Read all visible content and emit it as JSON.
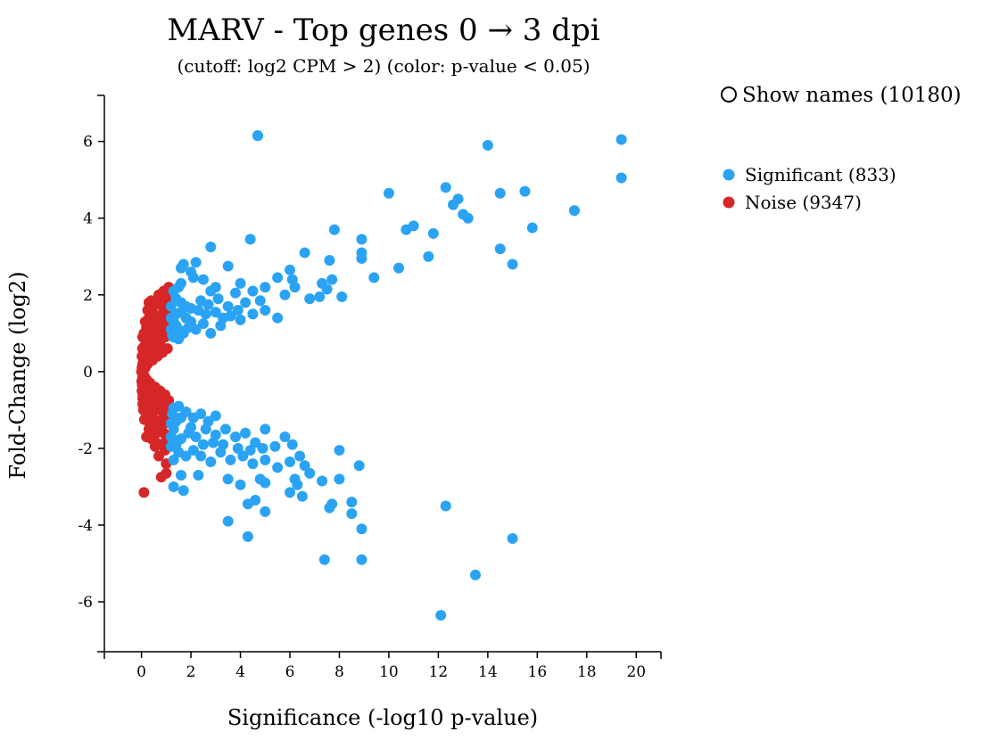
{
  "colors": {
    "significant": "#2aa3f4",
    "noise": "#d62728",
    "axis": "#000000"
  },
  "toggle": {
    "label": "Show names (10180)",
    "checked": false
  },
  "legend": [
    {
      "label": "Significant (833)",
      "color": "#2aa3f4"
    },
    {
      "label": "Noise (9347)",
      "color": "#d62728"
    }
  ],
  "chart_data": {
    "type": "scatter",
    "title": "MARV - Top genes 0 → 3 dpi",
    "subtitle": "(cutoff: log2 CPM > 2) (color: p-value < 0.05)",
    "xlabel": "Significance (-log10 p-value)",
    "ylabel": "Fold-Change (log2)",
    "xlim": [
      -1.5,
      21
    ],
    "ylim": [
      -7.3,
      7.2
    ],
    "xticks": [
      0,
      2,
      4,
      6,
      8,
      10,
      12,
      14,
      16,
      18,
      20
    ],
    "yticks": [
      -6,
      -4,
      -2,
      0,
      2,
      4,
      6
    ],
    "legend_position": "top-right",
    "grid": false,
    "series": [
      {
        "name": "Significant (833)",
        "points": [
          [
            4.7,
            6.15
          ],
          [
            14.0,
            5.9
          ],
          [
            19.4,
            6.05
          ],
          [
            19.4,
            5.05
          ],
          [
            10.0,
            4.65
          ],
          [
            12.3,
            4.8
          ],
          [
            14.5,
            4.65
          ],
          [
            15.5,
            4.7
          ],
          [
            12.6,
            4.35
          ],
          [
            12.8,
            4.5
          ],
          [
            13.0,
            4.1
          ],
          [
            13.2,
            4.0
          ],
          [
            17.5,
            4.2
          ],
          [
            15.8,
            3.75
          ],
          [
            10.7,
            3.7
          ],
          [
            11.0,
            3.8
          ],
          [
            11.8,
            3.6
          ],
          [
            14.5,
            3.2
          ],
          [
            15.0,
            2.8
          ],
          [
            11.6,
            3.0
          ],
          [
            4.4,
            3.45
          ],
          [
            2.8,
            3.25
          ],
          [
            7.8,
            3.7
          ],
          [
            8.9,
            3.45
          ],
          [
            6.6,
            3.1
          ],
          [
            8.9,
            3.1
          ],
          [
            8.9,
            2.95
          ],
          [
            10.4,
            2.7
          ],
          [
            9.4,
            2.45
          ],
          [
            7.6,
            2.9
          ],
          [
            3.5,
            2.75
          ],
          [
            2.2,
            2.85
          ],
          [
            1.7,
            2.8
          ],
          [
            1.6,
            2.7
          ],
          [
            2.0,
            2.6
          ],
          [
            2.5,
            2.4
          ],
          [
            6.0,
            2.65
          ],
          [
            5.5,
            2.45
          ],
          [
            6.2,
            2.2
          ],
          [
            7.7,
            2.4
          ],
          [
            7.3,
            2.3
          ],
          [
            7.5,
            2.15
          ],
          [
            8.1,
            1.95
          ],
          [
            6.8,
            1.9
          ],
          [
            7.2,
            1.95
          ],
          [
            3.0,
            2.2
          ],
          [
            4.0,
            2.3
          ],
          [
            4.5,
            2.1
          ],
          [
            5.0,
            2.2
          ],
          [
            3.8,
            2.05
          ],
          [
            2.8,
            2.1
          ],
          [
            5.8,
            2.0
          ],
          [
            1.6,
            2.3
          ],
          [
            1.5,
            2.2
          ],
          [
            6.1,
            2.4
          ],
          [
            2.1,
            2.45
          ],
          [
            1.3,
            2.1
          ],
          [
            1.4,
            1.9
          ],
          [
            1.6,
            1.8
          ],
          [
            1.8,
            1.7
          ],
          [
            2.0,
            1.65
          ],
          [
            2.3,
            1.6
          ],
          [
            2.6,
            1.5
          ],
          [
            3.0,
            1.55
          ],
          [
            3.3,
            1.4
          ],
          [
            3.6,
            1.45
          ],
          [
            4.0,
            1.35
          ],
          [
            4.5,
            1.5
          ],
          [
            5.0,
            1.6
          ],
          [
            5.5,
            1.4
          ],
          [
            1.3,
            1.3
          ],
          [
            1.4,
            1.2
          ],
          [
            1.5,
            1.1
          ],
          [
            1.7,
            1.0
          ],
          [
            1.9,
            1.15
          ],
          [
            2.2,
            1.1
          ],
          [
            2.5,
            1.25
          ],
          [
            2.8,
            1.0
          ],
          [
            3.2,
            1.2
          ],
          [
            1.3,
            0.9
          ],
          [
            1.5,
            0.85
          ],
          [
            1.4,
            1.5
          ],
          [
            1.8,
            1.4
          ],
          [
            2.4,
            1.85
          ],
          [
            2.7,
            1.75
          ],
          [
            3.1,
            1.9
          ],
          [
            3.5,
            1.7
          ],
          [
            3.9,
            1.6
          ],
          [
            4.2,
            1.8
          ],
          [
            4.8,
            1.85
          ],
          [
            1.2,
            1.7
          ],
          [
            1.2,
            1.4
          ],
          [
            1.2,
            1.1
          ],
          [
            1.25,
            0.95
          ],
          [
            1.6,
            1.55
          ],
          [
            2.0,
            1.3
          ],
          [
            4.7,
            6.15
          ],
          [
            4.3,
            -4.3
          ],
          [
            3.5,
            -3.9
          ],
          [
            4.3,
            -3.45
          ],
          [
            4.6,
            -3.35
          ],
          [
            5.0,
            -3.65
          ],
          [
            1.3,
            -3.0
          ],
          [
            1.7,
            -3.1
          ],
          [
            1.6,
            -2.7
          ],
          [
            2.3,
            -2.7
          ],
          [
            3.5,
            -2.8
          ],
          [
            4.0,
            -2.95
          ],
          [
            4.8,
            -2.8
          ],
          [
            5.0,
            -2.9
          ],
          [
            6.0,
            -3.15
          ],
          [
            6.3,
            -2.95
          ],
          [
            6.5,
            -3.25
          ],
          [
            6.2,
            -2.8
          ],
          [
            7.3,
            -2.85
          ],
          [
            7.7,
            -3.45
          ],
          [
            7.6,
            -3.55
          ],
          [
            8.0,
            -2.8
          ],
          [
            8.5,
            -3.4
          ],
          [
            8.5,
            -3.7
          ],
          [
            8.9,
            -4.1
          ],
          [
            8.8,
            -2.45
          ],
          [
            8.0,
            -2.05
          ],
          [
            7.4,
            -4.9
          ],
          [
            8.9,
            -4.9
          ],
          [
            12.1,
            -6.35
          ],
          [
            12.3,
            -3.5
          ],
          [
            13.5,
            -5.3
          ],
          [
            15.0,
            -4.35
          ],
          [
            5.0,
            -1.5
          ],
          [
            5.8,
            -1.7
          ],
          [
            6.1,
            -1.9
          ],
          [
            6.4,
            -2.2
          ],
          [
            6.6,
            -2.45
          ],
          [
            6.8,
            -2.65
          ],
          [
            6.0,
            -2.35
          ],
          [
            5.5,
            -2.5
          ],
          [
            5.0,
            -2.3
          ],
          [
            4.5,
            -2.4
          ],
          [
            4.1,
            -2.2
          ],
          [
            3.6,
            -2.3
          ],
          [
            3.2,
            -2.1
          ],
          [
            2.8,
            -2.35
          ],
          [
            2.4,
            -2.2
          ],
          [
            2.1,
            -2.05
          ],
          [
            1.8,
            -2.2
          ],
          [
            1.5,
            -2.1
          ],
          [
            1.3,
            -2.3
          ],
          [
            1.4,
            -1.9
          ],
          [
            1.6,
            -1.75
          ],
          [
            1.9,
            -1.6
          ],
          [
            2.2,
            -1.7
          ],
          [
            2.6,
            -1.5
          ],
          [
            3.0,
            -1.65
          ],
          [
            3.4,
            -1.5
          ],
          [
            3.8,
            -1.7
          ],
          [
            4.2,
            -1.6
          ],
          [
            4.6,
            -1.85
          ],
          [
            1.3,
            -1.5
          ],
          [
            1.4,
            -1.3
          ],
          [
            1.6,
            -1.2
          ],
          [
            1.8,
            -1.05
          ],
          [
            2.1,
            -1.2
          ],
          [
            2.4,
            -1.1
          ],
          [
            2.7,
            -1.3
          ],
          [
            3.0,
            -1.15
          ],
          [
            1.3,
            -0.95
          ],
          [
            1.5,
            -0.9
          ],
          [
            1.25,
            -1.1
          ],
          [
            2.0,
            -1.45
          ],
          [
            2.5,
            -1.9
          ],
          [
            3.3,
            -1.9
          ],
          [
            3.9,
            -2.0
          ],
          [
            4.4,
            -2.05
          ],
          [
            4.9,
            -2.0
          ],
          [
            5.4,
            -1.95
          ],
          [
            2.9,
            -1.85
          ],
          [
            1.2,
            -1.7
          ],
          [
            1.2,
            -1.95
          ],
          [
            1.2,
            -1.35
          ]
        ]
      },
      {
        "name": "Noise (9347)",
        "points": [
          [
            0.1,
            -3.15
          ],
          [
            0.8,
            -2.75
          ],
          [
            1.0,
            -2.65
          ],
          [
            1.0,
            -2.4
          ],
          [
            0.7,
            -2.2
          ],
          [
            0.8,
            -1.9
          ],
          [
            0.6,
            -1.85
          ],
          [
            0.4,
            -1.75
          ],
          [
            0.9,
            -1.6
          ],
          [
            0.5,
            -1.5
          ],
          [
            0.3,
            -1.3
          ],
          [
            0.7,
            -1.3
          ],
          [
            0.2,
            -1.1
          ],
          [
            0.5,
            -1.05
          ],
          [
            0.9,
            -1.15
          ],
          [
            0.15,
            -0.9
          ],
          [
            0.4,
            -0.8
          ],
          [
            0.7,
            -0.95
          ],
          [
            0.05,
            -0.7
          ],
          [
            0.25,
            -0.6
          ],
          [
            0.5,
            -0.65
          ],
          [
            0.02,
            -0.5
          ],
          [
            0.1,
            -0.4
          ],
          [
            0.2,
            -0.35
          ],
          [
            0.01,
            -0.25
          ],
          [
            0.05,
            -0.15
          ],
          [
            0.0,
            0.0
          ],
          [
            0.02,
            0.1
          ],
          [
            0.05,
            0.2
          ],
          [
            0.08,
            0.3
          ],
          [
            0.12,
            0.4
          ],
          [
            0.2,
            0.5
          ],
          [
            0.3,
            0.6
          ],
          [
            0.4,
            0.7
          ],
          [
            0.5,
            0.8
          ],
          [
            0.6,
            0.9
          ],
          [
            0.1,
            0.65
          ],
          [
            0.2,
            0.8
          ],
          [
            0.3,
            0.95
          ],
          [
            0.1,
            1.0
          ],
          [
            0.2,
            1.15
          ],
          [
            0.4,
            1.2
          ],
          [
            0.6,
            1.15
          ],
          [
            0.8,
            1.1
          ],
          [
            1.0,
            1.2
          ],
          [
            0.3,
            1.4
          ],
          [
            0.5,
            1.5
          ],
          [
            0.7,
            1.45
          ],
          [
            0.9,
            1.6
          ],
          [
            0.4,
            1.65
          ],
          [
            0.6,
            1.75
          ],
          [
            0.8,
            1.85
          ],
          [
            1.0,
            1.9
          ],
          [
            0.4,
            1.85
          ],
          [
            0.7,
            2.0
          ],
          [
            1.0,
            2.05
          ],
          [
            1.1,
            2.2
          ],
          [
            0.9,
            2.1
          ],
          [
            0.2,
            -1.7
          ],
          [
            0.45,
            -1.2
          ],
          [
            0.65,
            -1.45
          ],
          [
            0.85,
            -1.4
          ],
          [
            1.0,
            -1.7
          ],
          [
            1.05,
            -1.9
          ],
          [
            0.95,
            -2.05
          ],
          [
            0.55,
            -1.95
          ],
          [
            0.3,
            -1.5
          ],
          [
            0.12,
            -1.25
          ],
          [
            0.08,
            -1.0
          ],
          [
            0.75,
            -0.75
          ],
          [
            0.9,
            -0.85
          ],
          [
            1.05,
            -1.0
          ],
          [
            1.1,
            -1.3
          ],
          [
            0.35,
            -0.45
          ],
          [
            0.6,
            -0.55
          ],
          [
            0.15,
            0.55
          ],
          [
            0.35,
            0.45
          ],
          [
            0.55,
            0.6
          ],
          [
            0.75,
            0.75
          ],
          [
            0.95,
            0.9
          ],
          [
            1.1,
            1.0
          ],
          [
            0.05,
            0.9
          ],
          [
            0.15,
            1.3
          ],
          [
            0.25,
            1.6
          ],
          [
            0.55,
            1.3
          ],
          [
            0.85,
            1.35
          ],
          [
            1.1,
            1.5
          ],
          [
            1.15,
            1.75
          ],
          [
            0.05,
            -0.85
          ],
          [
            0.3,
            -1.05
          ],
          [
            1.05,
            0.6
          ],
          [
            0.85,
            0.5
          ],
          [
            0.65,
            0.4
          ],
          [
            0.45,
            0.3
          ],
          [
            0.25,
            0.2
          ],
          [
            0.15,
            0.1
          ],
          [
            0.1,
            -0.1
          ],
          [
            0.2,
            -0.2
          ],
          [
            0.35,
            -0.3
          ],
          [
            0.55,
            -0.4
          ],
          [
            0.75,
            -0.5
          ],
          [
            0.95,
            -0.6
          ],
          [
            1.1,
            -0.75
          ],
          [
            0.02,
            0.4
          ],
          [
            0.03,
            -0.35
          ],
          [
            0.04,
            0.6
          ],
          [
            0.06,
            -0.6
          ],
          [
            0.5,
            1.0
          ],
          [
            0.7,
            1.25
          ],
          [
            0.9,
            -1.25
          ],
          [
            0.6,
            -1.6
          ],
          [
            0.35,
            -1.4
          ],
          [
            0.3,
            1.8
          ],
          [
            0.85,
            1.7
          ]
        ]
      }
    ]
  }
}
